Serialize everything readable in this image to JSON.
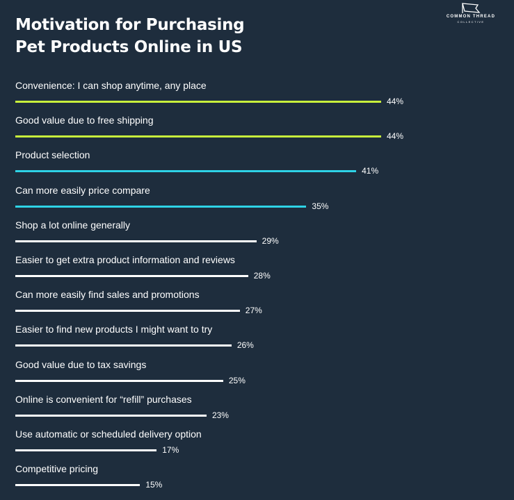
{
  "header": {
    "title_line1": "Motivation for Purchasing",
    "title_line2": "Pet Products Online in US"
  },
  "logo": {
    "line1": "COMMON THREAD",
    "line2": "COLLECTIVE",
    "icon": "flag-icon"
  },
  "colors": {
    "background": "#1e2d3d",
    "lime": "#c8f03c",
    "cyan": "#2ed3e6",
    "white": "#ffffff"
  },
  "chart_data": {
    "type": "bar",
    "orientation": "horizontal",
    "title": "Motivation for Purchasing Pet Products Online in US",
    "xlim": [
      0,
      44
    ],
    "grid": false,
    "categories": [
      "Convenience: I can shop anytime, any place",
      "Good value due to free shipping",
      "Product selection",
      "Can more easily price compare",
      "Shop a lot online generally",
      "Easier to get extra product information and reviews",
      "Can more easily find sales and promotions",
      "Easier to find new products I might want to try",
      "Good value due to tax savings",
      "Online is convenient for “refill” purchases",
      "Use automatic or scheduled delivery option",
      "Competitive pricing"
    ],
    "values": [
      44,
      44,
      41,
      35,
      29,
      28,
      27,
      26,
      25,
      23,
      17,
      15
    ],
    "value_labels": [
      "44%",
      "44%",
      "41%",
      "35%",
      "29%",
      "28%",
      "27%",
      "26%",
      "25%",
      "23%",
      "17%",
      "15%"
    ],
    "bar_colors": [
      "#c8f03c",
      "#c8f03c",
      "#2ed3e6",
      "#2ed3e6",
      "#ffffff",
      "#ffffff",
      "#ffffff",
      "#ffffff",
      "#ffffff",
      "#ffffff",
      "#ffffff",
      "#ffffff"
    ]
  }
}
